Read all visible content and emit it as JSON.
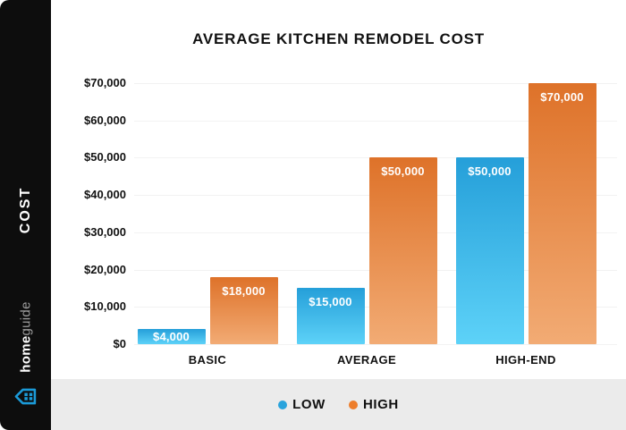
{
  "sidebar": {
    "cost_label": "COST",
    "brand_bold": "home",
    "brand_light": "guide",
    "bg_color": "#0d0d0d",
    "logo_color": "#1b9ad7"
  },
  "chart_data": {
    "type": "bar",
    "title": "AVERAGE KITCHEN REMODEL COST",
    "categories": [
      "BASIC",
      "AVERAGE",
      "HIGH-END"
    ],
    "series": [
      {
        "name": "LOW",
        "values": [
          4000,
          15000,
          50000
        ],
        "color_top": "#259fd9",
        "color_bottom": "#5dd2f8"
      },
      {
        "name": "HIGH",
        "values": [
          18000,
          50000,
          70000
        ],
        "color_top": "#de7229",
        "color_bottom": "#f2ab74"
      }
    ],
    "bar_labels": [
      [
        "$4,000",
        "$15,000",
        "$50,000"
      ],
      [
        "$18,000",
        "$50,000",
        "$70,000"
      ]
    ],
    "y_ticks": [
      "$0",
      "$10,000",
      "$20,000",
      "$30,000",
      "$40,000",
      "$50,000",
      "$60,000",
      "$70,000"
    ],
    "ylim": [
      0,
      70000
    ],
    "grid": true,
    "legend_position": "bottom"
  },
  "legend": {
    "items": [
      {
        "label": "LOW",
        "color": "#29a3dc"
      },
      {
        "label": "HIGH",
        "color": "#ed7d2b"
      }
    ]
  }
}
